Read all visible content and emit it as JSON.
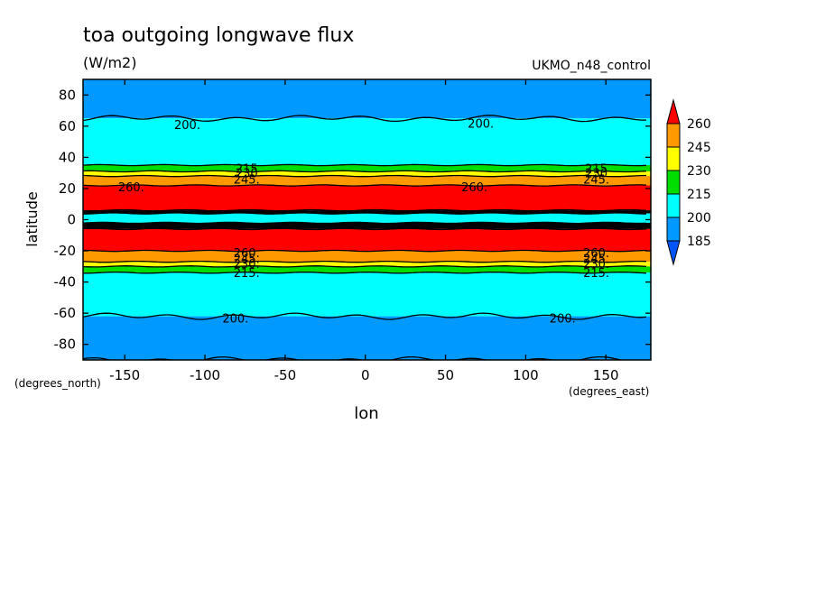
{
  "chart_data": {
    "type": "contour",
    "title": "toa outgoing longwave flux",
    "units": "(W/m2)",
    "source_label": "UKMO_n48_control",
    "xlabel": "lon",
    "ylabel": "latitude",
    "x_units": "(degrees_east)",
    "y_units": "(degrees_north)",
    "x_ticks": [
      "-150",
      "-100",
      "-50",
      "0",
      "50",
      "100",
      "150"
    ],
    "x_tick_values": [
      -150,
      -100,
      -50,
      0,
      50,
      100,
      150
    ],
    "y_ticks": [
      "80",
      "60",
      "40",
      "20",
      "0",
      "-20",
      "-40",
      "-60",
      "-80"
    ],
    "y_tick_values": [
      80,
      60,
      40,
      20,
      0,
      -20,
      -40,
      -60,
      -80
    ],
    "xlim": [
      -176,
      178
    ],
    "ylim": [
      -90,
      90
    ],
    "colorbar": {
      "levels": [
        "260",
        "245",
        "230",
        "215",
        "200",
        "185"
      ],
      "colors": [
        "#ff0000",
        "#ff9900",
        "#ffff00",
        "#00dd00",
        "#00ffff",
        "#0099ff"
      ]
    },
    "latitude_bands": [
      {
        "lat_min": 65,
        "lat_max": 90,
        "value": "<200",
        "color": "#0099ff"
      },
      {
        "lat_min": 35,
        "lat_max": 65,
        "value": "200-215",
        "color": "#00ffff"
      },
      {
        "lat_min": 31,
        "lat_max": 35,
        "value": "215-230",
        "color": "#00dd00"
      },
      {
        "lat_min": 28,
        "lat_max": 31,
        "value": "230-245",
        "color": "#ffff00"
      },
      {
        "lat_min": 22,
        "lat_max": 28,
        "value": "245-260",
        "color": "#ff9900"
      },
      {
        "lat_min": 6,
        "lat_max": 22,
        "value": ">260",
        "color": "#ff0000"
      },
      {
        "lat_min": 4,
        "lat_max": 6,
        "value": "tight gradient",
        "color": "#000000"
      },
      {
        "lat_min": -2,
        "lat_max": 4,
        "value": "200-215",
        "color": "#00ffff"
      },
      {
        "lat_min": -6,
        "lat_max": -2,
        "value": "tight gradient",
        "color": "#000000"
      },
      {
        "lat_min": -20,
        "lat_max": -6,
        "value": ">260",
        "color": "#ff0000"
      },
      {
        "lat_min": -27,
        "lat_max": -20,
        "value": "245-260",
        "color": "#ff9900"
      },
      {
        "lat_min": -30,
        "lat_max": -27,
        "value": "230-245",
        "color": "#ffff00"
      },
      {
        "lat_min": -34,
        "lat_max": -30,
        "value": "215-230",
        "color": "#00dd00"
      },
      {
        "lat_min": -62,
        "lat_max": -34,
        "value": "200-215",
        "color": "#00ffff"
      },
      {
        "lat_min": -90,
        "lat_max": -62,
        "value": "<200",
        "color": "#0099ff"
      }
    ],
    "contour_labels": [
      {
        "text": "200.",
        "lon": -111,
        "lat": 61
      },
      {
        "text": "200.",
        "lon": 72,
        "lat": 62
      },
      {
        "text": "260.",
        "lon": -146,
        "lat": 21
      },
      {
        "text": "260.",
        "lon": 68,
        "lat": 21
      },
      {
        "text": "215",
        "lon": -74,
        "lat": 33
      },
      {
        "text": "230",
        "lon": -74,
        "lat": 30
      },
      {
        "text": "245.",
        "lon": -74,
        "lat": 26
      },
      {
        "text": "215",
        "lon": 144,
        "lat": 33
      },
      {
        "text": "230",
        "lon": 144,
        "lat": 30
      },
      {
        "text": "245.",
        "lon": 144,
        "lat": 26
      },
      {
        "text": "260.",
        "lon": -74,
        "lat": -21
      },
      {
        "text": "245.",
        "lon": -74,
        "lat": -25
      },
      {
        "text": "230.",
        "lon": -74,
        "lat": -28
      },
      {
        "text": "215.",
        "lon": -74,
        "lat": -34
      },
      {
        "text": "260.",
        "lon": 144,
        "lat": -21
      },
      {
        "text": "245.",
        "lon": 144,
        "lat": -25
      },
      {
        "text": "230.",
        "lon": 144,
        "lat": -28
      },
      {
        "text": "215.",
        "lon": 144,
        "lat": -34
      },
      {
        "text": "200.",
        "lon": -81,
        "lat": -63
      },
      {
        "text": "200.",
        "lon": 123,
        "lat": -63
      }
    ]
  }
}
